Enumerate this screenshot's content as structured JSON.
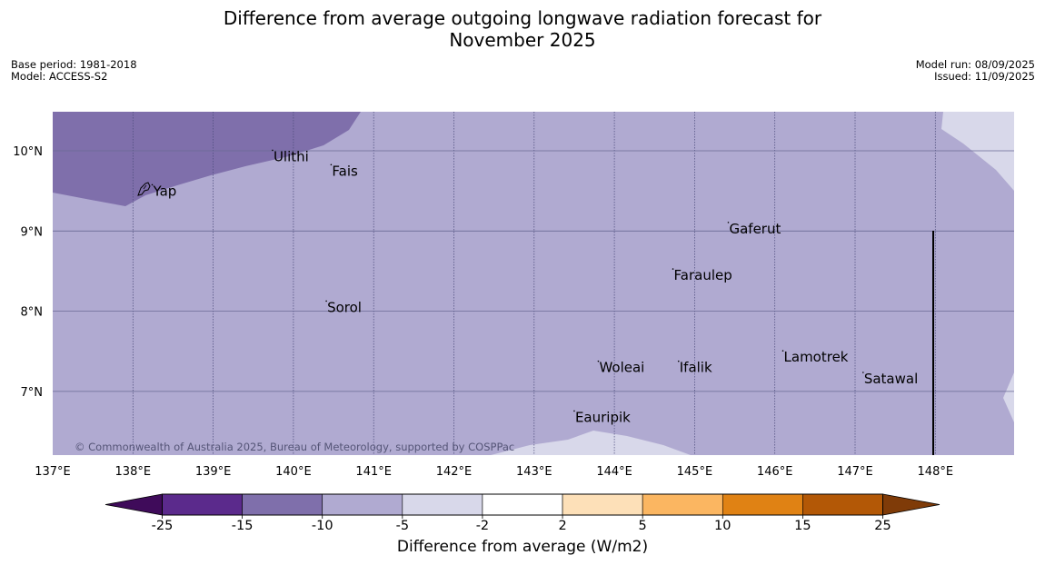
{
  "header": {
    "title_line1": "Difference from average outgoing longwave radiation forecast for",
    "title_line2": "November 2025",
    "base_period": "Base period: 1981-2018",
    "model": "Model: ACCESS-S2",
    "model_run": "Model run: 08/09/2025",
    "issued": "Issued: 11/09/2025"
  },
  "map": {
    "lon_labels": [
      "137°E",
      "138°E",
      "139°E",
      "140°E",
      "141°E",
      "142°E",
      "143°E",
      "144°E",
      "145°E",
      "146°E",
      "147°E",
      "148°E"
    ],
    "lat_labels": [
      "10°N",
      "9°N",
      "8°N",
      "7°N"
    ],
    "places": [
      {
        "name": "Yap",
        "lon": 138.24,
        "lat": 9.52
      },
      {
        "name": "Ulithi",
        "lon": 139.74,
        "lat": 9.95
      },
      {
        "name": "Fais",
        "lon": 140.47,
        "lat": 9.77
      },
      {
        "name": "Gaferut",
        "lon": 145.42,
        "lat": 9.05
      },
      {
        "name": "Faraulep",
        "lon": 144.73,
        "lat": 8.47
      },
      {
        "name": "Sorol",
        "lon": 140.41,
        "lat": 8.07
      },
      {
        "name": "Lamotrek",
        "lon": 146.1,
        "lat": 7.45
      },
      {
        "name": "Woleai",
        "lon": 143.8,
        "lat": 7.32
      },
      {
        "name": "Ifalik",
        "lon": 144.8,
        "lat": 7.32
      },
      {
        "name": "Satawal",
        "lon": 147.1,
        "lat": 7.18
      },
      {
        "name": "Eauripik",
        "lon": 143.5,
        "lat": 6.7
      }
    ],
    "copyright": "© Commonwealth of Australia 2025, Bureau of Meteorology, supported by COSPPac"
  },
  "colorbar": {
    "label": "Difference from average (W/m2)",
    "ticks": [
      "-25",
      "-15",
      "-10",
      "-5",
      "-2",
      "2",
      "5",
      "10",
      "15",
      "25"
    ],
    "colors": [
      "#3f0b5a",
      "#5b2a8c",
      "#7f6fab",
      "#b0aad1",
      "#d8d8ea",
      "#ffffff",
      "#fde0b8",
      "#fbb661",
      "#e08214",
      "#b35806",
      "#7f3b08"
    ]
  }
}
